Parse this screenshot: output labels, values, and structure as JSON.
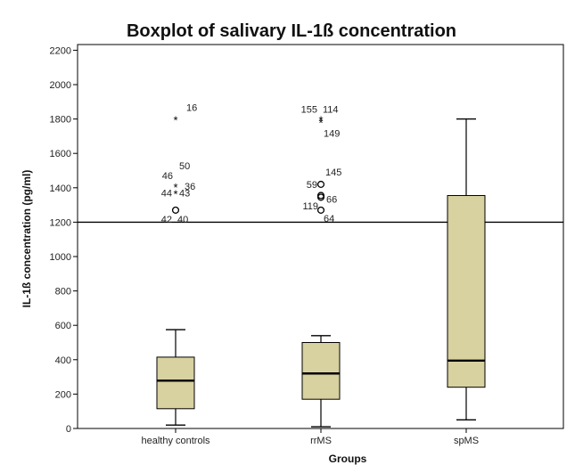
{
  "chart_data": {
    "type": "boxplot",
    "title": "Boxplot of salivary IL-1ß concentration",
    "xlabel": "Groups",
    "ylabel": "IL-1ß concentration (pg/ml)",
    "ylim": [
      0,
      2250
    ],
    "yticks": [
      0,
      200,
      400,
      600,
      800,
      1000,
      1200,
      1400,
      1600,
      1800,
      2000,
      2200
    ],
    "reference_line": 1200,
    "colors": {
      "box_fill": "#d8d1a0",
      "stroke": "#000000",
      "reference_line": "#000000"
    },
    "categories": [
      "healthy controls",
      "rrMS",
      "spMS"
    ],
    "boxes": [
      {
        "category": "healthy controls",
        "min": 20,
        "q1": 115,
        "median": 278,
        "q3": 415,
        "max": 575
      },
      {
        "category": "rrMS",
        "min": 10,
        "q1": 170,
        "median": 320,
        "q3": 500,
        "max": 540
      },
      {
        "category": "spMS",
        "min": 50,
        "q1": 240,
        "median": 395,
        "q3": 1355,
        "max": 1800
      }
    ],
    "outliers": [
      {
        "category": "healthy controls",
        "value": 1800,
        "kind": "extreme",
        "labels": [
          "16"
        ]
      },
      {
        "category": "healthy controls",
        "value": 1410,
        "kind": "extreme",
        "labels": [
          "50",
          "46",
          "36"
        ]
      },
      {
        "category": "healthy controls",
        "value": 1370,
        "kind": "extreme",
        "labels": [
          "44",
          "43"
        ]
      },
      {
        "category": "healthy controls",
        "value": 1270,
        "kind": "outlier",
        "labels": [
          "42",
          "40"
        ]
      },
      {
        "category": "rrMS",
        "value": 1800,
        "kind": "extreme",
        "labels": [
          "155",
          "114"
        ]
      },
      {
        "category": "rrMS",
        "value": 1785,
        "kind": "extreme",
        "labels": [
          "149"
        ]
      },
      {
        "category": "rrMS",
        "value": 1420,
        "kind": "outlier",
        "labels": [
          "145",
          "59"
        ]
      },
      {
        "category": "rrMS",
        "value": 1355,
        "kind": "outlier",
        "labels": [
          "66"
        ]
      },
      {
        "category": "rrMS",
        "value": 1345,
        "kind": "outlier",
        "labels": []
      },
      {
        "category": "rrMS",
        "value": 1270,
        "kind": "outlier",
        "labels": [
          "119",
          "64"
        ]
      }
    ],
    "legend": "none",
    "grid": false
  }
}
